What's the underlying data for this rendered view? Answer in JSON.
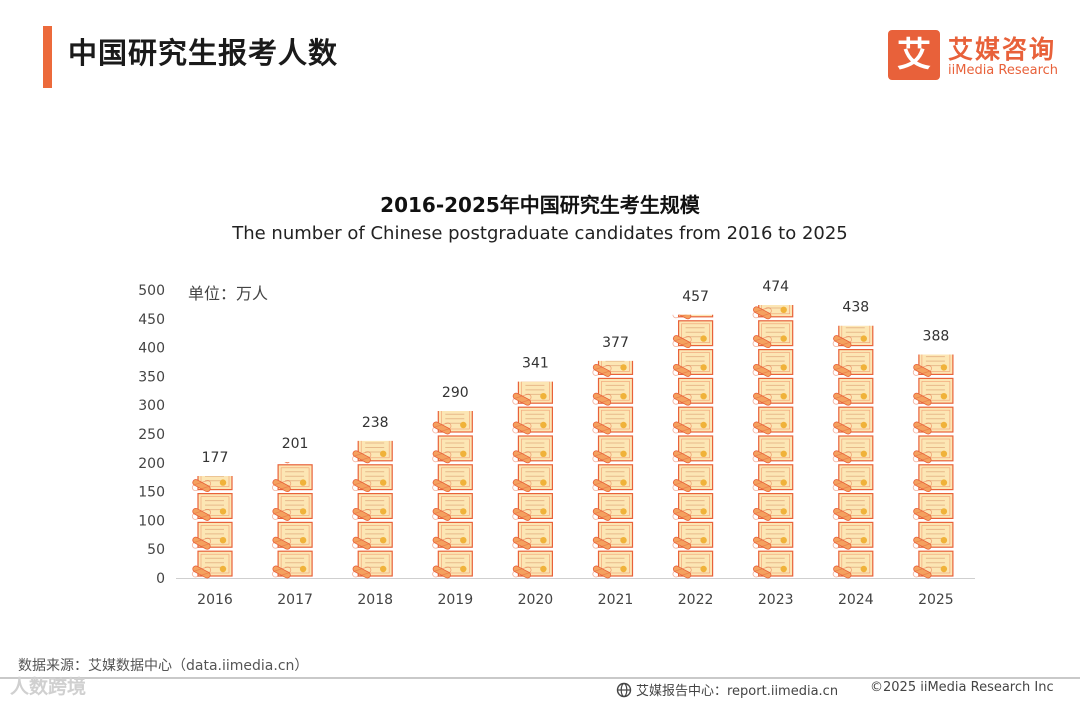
{
  "page_title": "中国研究生报考人数",
  "logo": {
    "mark": "艾",
    "cn": "艾媒咨询",
    "en": "iiMedia Research"
  },
  "chart_data": {
    "type": "bar",
    "title": "2016-2025年中国研究生考生规模",
    "subtitle": "The number of Chinese postgraduate candidates from 2016 to 2025",
    "unit_label": "单位：万人",
    "categories": [
      "2016",
      "2017",
      "2018",
      "2019",
      "2020",
      "2021",
      "2022",
      "2023",
      "2024",
      "2025"
    ],
    "values": [
      177,
      201,
      238,
      290,
      341,
      377,
      457,
      474,
      438,
      388
    ],
    "ylim": [
      0,
      500
    ],
    "yticks": [
      0,
      50,
      100,
      150,
      200,
      250,
      300,
      350,
      400,
      450,
      500
    ],
    "bar_style": "stacked certificate pictograms",
    "grid": false,
    "colors": {
      "certificate": "#fce6b4",
      "border": "#e8623a",
      "seal": "#f0b23a",
      "scroll": "#f4a15f"
    }
  },
  "source_text": "数据来源：艾媒数据中心（data.iimedia.cn）",
  "footer": {
    "watermark": "人数跨境",
    "center": "艾媒报告中心：report.iimedia.cn",
    "right": "©2025  iiMedia Research  Inc"
  }
}
